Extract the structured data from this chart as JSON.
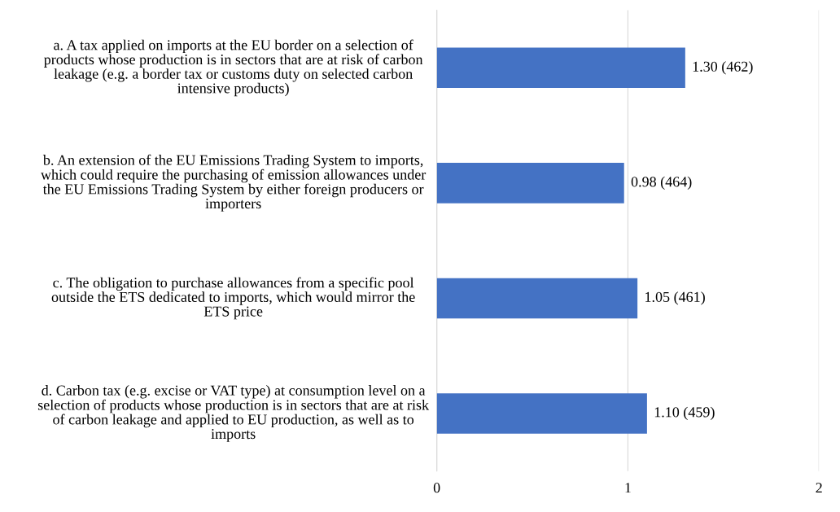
{
  "chart_data": {
    "type": "bar",
    "orientation": "horizontal",
    "categories": [
      "a. A tax applied on imports at the EU border on a selection of products whose production is in sectors that are at risk of carbon leakage (e.g. a border tax or customs duty on selected carbon intensive products)",
      "b. An extension of the EU Emissions Trading System to imports, which could require the purchasing of emission allowances under the EU Emissions Trading System by either foreign producers or importers",
      "c. The obligation to purchase allowances from a specific pool outside the ETS dedicated to imports, which would mirror the ETS price",
      "d. Carbon tax (e.g. excise or VAT type) at consumption level on a selection of products whose production is in sectors that are at risk of carbon leakage and applied to EU production, as well as to imports"
    ],
    "values": [
      1.3,
      0.98,
      1.05,
      1.1
    ],
    "value_labels": [
      "1.30 (462)",
      "0.98 (464)",
      "1.05 (461)",
      "1.10 (459)"
    ],
    "color": "#4472c4",
    "xlim": [
      0,
      2
    ],
    "xticks": [
      0,
      1,
      2
    ],
    "grid": "x"
  }
}
